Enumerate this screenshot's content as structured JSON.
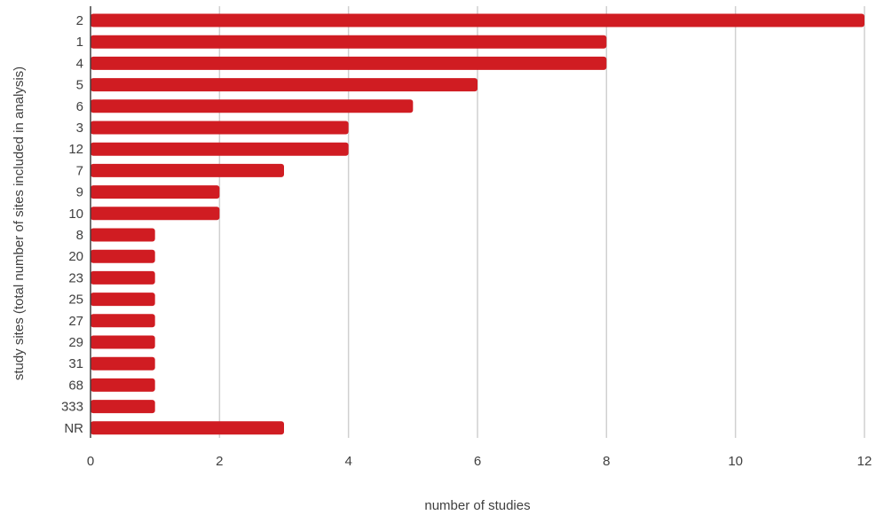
{
  "chart_data": {
    "type": "bar",
    "orientation": "horizontal",
    "categories": [
      "2",
      "1",
      "4",
      "5",
      "6",
      "3",
      "12",
      "7",
      "9",
      "10",
      "8",
      "20",
      "23",
      "25",
      "27",
      "29",
      "31",
      "68",
      "333",
      "NR"
    ],
    "values": [
      12,
      8,
      8,
      6,
      5,
      4,
      4,
      3,
      2,
      2,
      1,
      1,
      1,
      1,
      1,
      1,
      1,
      1,
      1,
      3
    ],
    "xlabel": "number of studies",
    "ylabel": "study sites (total number of sites included in analysis)",
    "xlim": [
      0,
      12
    ],
    "xticks": [
      0,
      2,
      4,
      6,
      8,
      10,
      12
    ],
    "grid": "vertical",
    "bar_color": "#d01c22"
  }
}
